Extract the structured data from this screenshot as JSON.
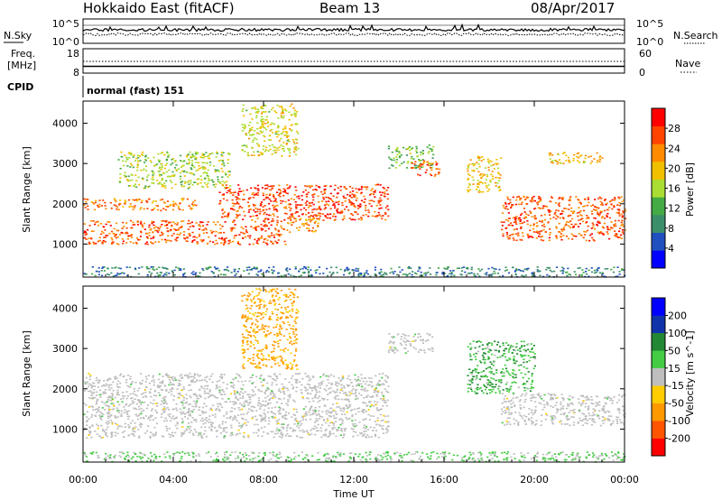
{
  "header": {
    "title": "Hokkaido East (fitACF)",
    "beam": "Beam 13",
    "date": "08/Apr/2017"
  },
  "noise_panel": {
    "left_label": "N.Sky",
    "right_label": "N.Search",
    "left_ticks": [
      "10^5",
      "10^0"
    ],
    "right_ticks": [
      "10^5",
      "10^0"
    ]
  },
  "freq_panel": {
    "left_label_line1": "Freq.",
    "left_label_line2": "[MHz]",
    "left_ticks": [
      "18",
      "8"
    ],
    "right_label": "Nave",
    "right_ticks": [
      "60",
      "0"
    ]
  },
  "cpid_panel": {
    "label": "CPID",
    "value": "normal (fast) 151"
  },
  "x_axis": {
    "label": "Time UT",
    "ticks": [
      "00:00",
      "04:00",
      "08:00",
      "12:00",
      "16:00",
      "20:00",
      "00:00"
    ]
  },
  "colors": {
    "ground_scatter": "#bebebe",
    "power_scale": [
      "#0000ff",
      "#2050c0",
      "#3a8f6a",
      "#44aa44",
      "#aadd33",
      "#f0c000",
      "#ff8c00",
      "#ff4400",
      "#ff0000"
    ],
    "velocity_scale": [
      "#ff0000",
      "#ff5500",
      "#ff9900",
      "#ffcc00",
      "#bebebe",
      "#44cc44",
      "#228833",
      "#1133aa",
      "#0000ff"
    ]
  },
  "chart_data": [
    {
      "type": "heatmap",
      "panel": "power",
      "ylabel": "Slant Range [km]",
      "xlabel": "Time UT",
      "x_range_hours": [
        0,
        24
      ],
      "ylim": [
        180,
        4550
      ],
      "yticks": [
        1000,
        2000,
        3000,
        4000
      ],
      "colorbar": {
        "label": "Power [dB]",
        "ticks": [
          4,
          8,
          12,
          16,
          20,
          24,
          28
        ],
        "range": [
          0,
          32
        ]
      },
      "features": [
        {
          "t_start": 0.0,
          "t_end": 9.0,
          "r_start": 1000,
          "r_end": 1600,
          "value": 26
        },
        {
          "t_start": 0.0,
          "t_end": 5.0,
          "r_start": 1850,
          "r_end": 2150,
          "value": 24
        },
        {
          "t_start": 6.0,
          "t_end": 13.5,
          "r_start": 1600,
          "r_end": 2500,
          "value": 27
        },
        {
          "t_start": 9.0,
          "t_end": 10.5,
          "r_start": 1300,
          "r_end": 1750,
          "value": 22
        },
        {
          "t_start": 1.5,
          "t_end": 6.5,
          "r_start": 2400,
          "r_end": 3300,
          "value": 16
        },
        {
          "t_start": 7.0,
          "t_end": 9.5,
          "r_start": 3200,
          "r_end": 4500,
          "value": 18
        },
        {
          "t_start": 13.5,
          "t_end": 15.5,
          "r_start": 2900,
          "r_end": 3500,
          "value": 14
        },
        {
          "t_start": 14.5,
          "t_end": 15.8,
          "r_start": 2700,
          "r_end": 3100,
          "value": 26
        },
        {
          "t_start": 17.0,
          "t_end": 18.5,
          "r_start": 2300,
          "r_end": 3200,
          "value": 20
        },
        {
          "t_start": 18.5,
          "t_end": 24.0,
          "r_start": 1100,
          "r_end": 2200,
          "value": 26
        },
        {
          "t_start": 20.5,
          "t_end": 23.0,
          "r_start": 3000,
          "r_end": 3300,
          "value": 20
        },
        {
          "t_start": 0.0,
          "t_end": 24.0,
          "r_start": 200,
          "r_end": 450,
          "value": 8
        }
      ]
    },
    {
      "type": "heatmap",
      "panel": "velocity",
      "ylabel": "Slant Range [km]",
      "xlabel": "Time UT",
      "x_range_hours": [
        0,
        24
      ],
      "ylim": [
        180,
        4550
      ],
      "yticks": [
        1000,
        2000,
        3000,
        4000
      ],
      "colorbar": {
        "label": "Velocity [m s^-1]",
        "ticks": [
          "200",
          "100",
          "50",
          "15",
          "-15",
          "-50",
          "-100",
          "-200"
        ]
      },
      "features": [
        {
          "t_start": 0.0,
          "t_end": 13.5,
          "r_start": 800,
          "r_end": 2400,
          "value": 0,
          "ground_scatter": true
        },
        {
          "t_start": 13.5,
          "t_end": 15.5,
          "r_start": 2900,
          "r_end": 3400,
          "value": 0,
          "ground_scatter": true
        },
        {
          "t_start": 18.5,
          "t_end": 24.0,
          "r_start": 1100,
          "r_end": 1900,
          "value": 0,
          "ground_scatter": true
        },
        {
          "t_start": 7.0,
          "t_end": 9.5,
          "r_start": 2500,
          "r_end": 4500,
          "value": -60
        },
        {
          "t_start": 17.0,
          "t_end": 20.0,
          "r_start": 1900,
          "r_end": 3200,
          "value": 40
        },
        {
          "t_start": 0.0,
          "t_end": 24.0,
          "r_start": 200,
          "r_end": 450,
          "value": 20
        }
      ]
    }
  ]
}
